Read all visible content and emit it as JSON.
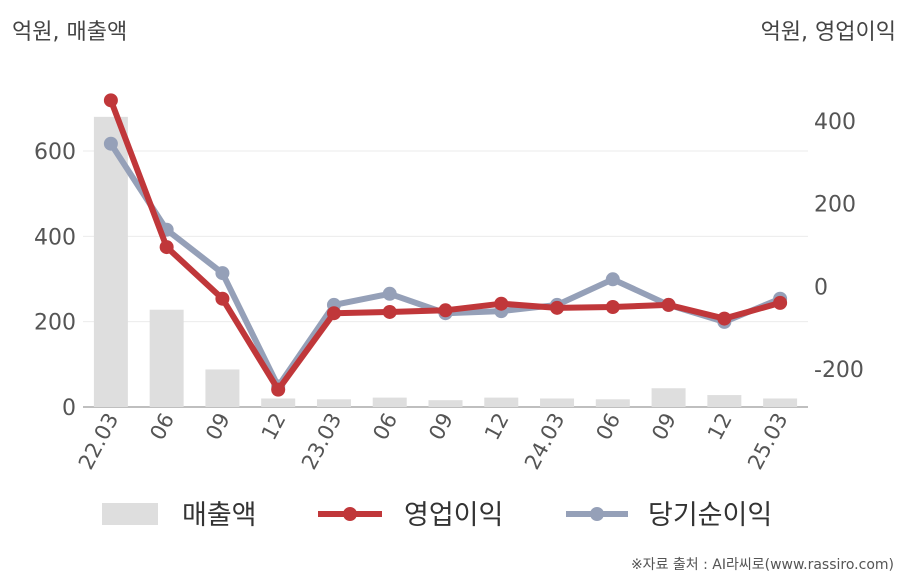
{
  "units": {
    "left": "억원, 매출액",
    "right": "억원, 영업이익"
  },
  "source": "※자료 출처 : AI라씨로(www.rassiro.com)",
  "chart_data": {
    "type": "bar+line",
    "categories": [
      "22.03",
      "06",
      "09",
      "12",
      "23.03",
      "06",
      "09",
      "12",
      "24.03",
      "06",
      "09",
      "12",
      "25.03"
    ],
    "y_left": {
      "ticks": [
        0,
        200,
        400,
        600
      ],
      "range": [
        0,
        700
      ]
    },
    "y_right": {
      "ticks": [
        -200,
        0,
        200,
        400
      ],
      "range": [
        -290,
        480
      ]
    },
    "series": [
      {
        "name": "매출액",
        "type": "bar",
        "axis": "left",
        "color": "#dedede",
        "values": [
          680,
          228,
          88,
          20,
          18,
          22,
          16,
          22,
          20,
          18,
          44,
          28,
          20
        ]
      },
      {
        "name": "영업이익",
        "type": "line",
        "axis": "right",
        "color": "#c0373a",
        "values": [
          450,
          95,
          -30,
          -250,
          -65,
          -62,
          -58,
          -42,
          -52,
          -50,
          -45,
          -78,
          -40
        ]
      },
      {
        "name": "당기순이익",
        "type": "line",
        "axis": "right",
        "color": "#95a0b8",
        "values": [
          345,
          137,
          32,
          -242,
          -45,
          -18,
          -65,
          -60,
          -45,
          17,
          -45,
          -86,
          -30
        ]
      }
    ],
    "legend": [
      "매출액",
      "영업이익",
      "당기순이익"
    ],
    "legend_position": "bottom",
    "grid": true
  }
}
